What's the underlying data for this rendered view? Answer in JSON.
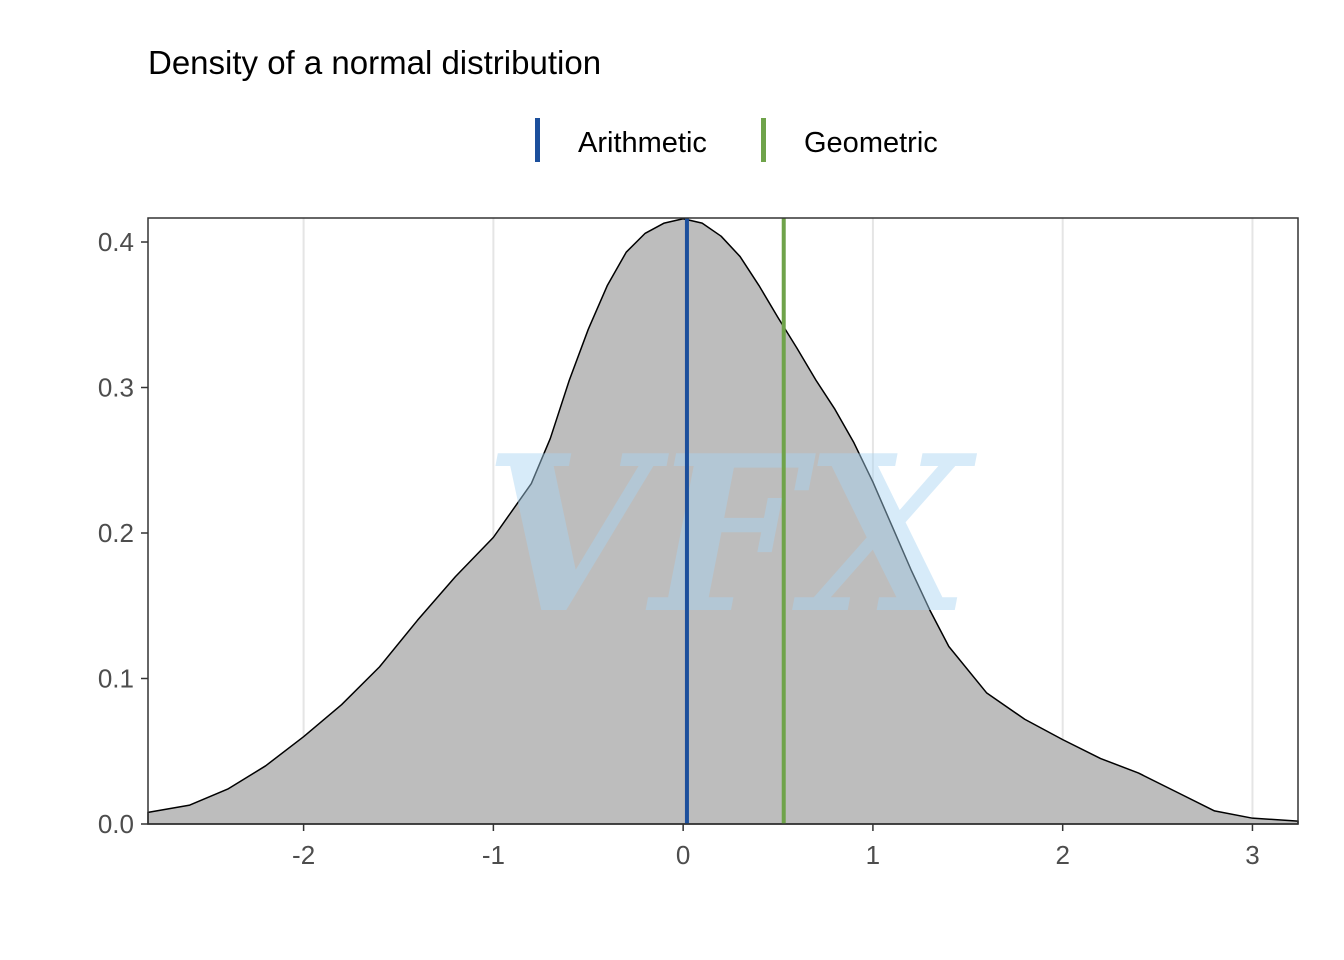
{
  "chart_data": {
    "type": "area",
    "title": "Density of a normal distribution",
    "xlabel": "",
    "ylabel": "",
    "xlim": [
      -2.82,
      3.24
    ],
    "ylim": [
      0.0,
      0.4165
    ],
    "x_ticks": [
      -2,
      -1,
      0,
      1,
      2,
      3
    ],
    "x_tick_labels": [
      "-2",
      "-1",
      "0",
      "1",
      "2",
      "3"
    ],
    "y_ticks": [
      0.0,
      0.1,
      0.2,
      0.3,
      0.4
    ],
    "y_tick_labels": [
      "0.0",
      "0.1",
      "0.2",
      "0.3",
      "0.4"
    ],
    "grid": "vertical-major",
    "legend_position": "top",
    "density": {
      "fill": "#bdbdbd",
      "stroke": "#000000",
      "x": [
        -2.82,
        -2.6,
        -2.4,
        -2.2,
        -2.0,
        -1.8,
        -1.6,
        -1.4,
        -1.2,
        -1.0,
        -0.8,
        -0.7,
        -0.6,
        -0.5,
        -0.4,
        -0.3,
        -0.2,
        -0.1,
        0.0,
        0.1,
        0.2,
        0.3,
        0.4,
        0.5,
        0.6,
        0.7,
        0.8,
        0.9,
        1.0,
        1.1,
        1.2,
        1.3,
        1.4,
        1.6,
        1.8,
        2.0,
        2.2,
        2.4,
        2.6,
        2.8,
        3.0,
        3.24
      ],
      "y": [
        0.008,
        0.013,
        0.024,
        0.04,
        0.06,
        0.082,
        0.108,
        0.14,
        0.17,
        0.197,
        0.234,
        0.265,
        0.305,
        0.34,
        0.37,
        0.393,
        0.406,
        0.413,
        0.416,
        0.413,
        0.404,
        0.39,
        0.37,
        0.348,
        0.327,
        0.305,
        0.285,
        0.262,
        0.235,
        0.205,
        0.175,
        0.147,
        0.122,
        0.09,
        0.072,
        0.058,
        0.045,
        0.035,
        0.022,
        0.009,
        0.004,
        0.002
      ]
    },
    "series": [
      {
        "name": "Arithmetic",
        "type": "vline",
        "x": 0.02,
        "color": "#1c4f9c"
      },
      {
        "name": "Geometric",
        "type": "vline",
        "x": 0.53,
        "color": "#6fa34a"
      }
    ],
    "watermark": {
      "text": "VFX",
      "color": "#a8d4f2"
    }
  }
}
